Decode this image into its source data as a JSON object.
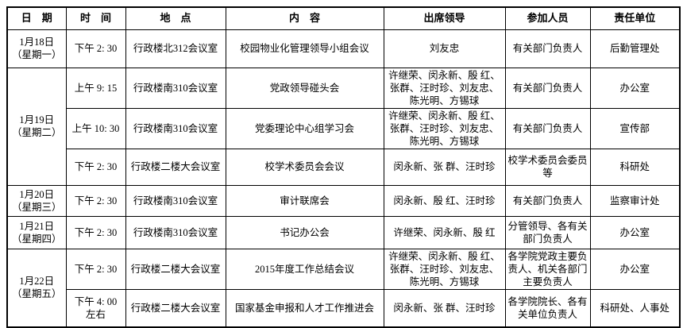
{
  "colors": {
    "border": "#000000",
    "background": "#ffffff",
    "text": "#000000"
  },
  "headers": {
    "date": "日　期",
    "time": "时　间",
    "place": "地　点",
    "content": "内　容",
    "leaders": "出席领导",
    "participants": "参加人员",
    "unit": "责任单位"
  },
  "rows": [
    {
      "date": "1月18日\n（星期一）",
      "time": "下午 2: 30",
      "place": "行政楼北312会议室",
      "content": "校园物业化管理领导小组会议",
      "leaders": "刘友忠",
      "participants": "有关部门负责人",
      "unit": "后勤管理处"
    },
    {
      "date": "1月19日\n（星期二）",
      "time": "上午 9: 15",
      "place": "行政楼南310会议室",
      "content": "党政领导碰头会",
      "leaders": "许继荣、闵永新、殷 红、张群、汪时珍、刘友忠、陈光明、方锡球",
      "participants": "有关部门负责人",
      "unit": "办公室"
    },
    {
      "time": "上午 10: 30",
      "place": "行政楼南310会议室",
      "content": "党委理论中心组学习会",
      "leaders": "许继荣、闵永新、殷 红、张群、汪时珍、刘友忠、陈光明、方锡球",
      "participants": "有关部门负责人",
      "unit": "宣传部"
    },
    {
      "time": "下午 2: 30",
      "place": "行政楼二楼大会议室",
      "content": "校学术委员会会议",
      "leaders": "闵永新、张 群、汪时珍",
      "participants": "校学术委员会委员等",
      "unit": "科研处"
    },
    {
      "date": "1月20日\n（星期三）",
      "time": "下午 2: 30",
      "place": "行政楼南310会议室",
      "content": "审计联席会",
      "leaders": "闵永新、殷 红、汪时珍",
      "participants": "有关部门负责人",
      "unit": "监察审计处"
    },
    {
      "date": "1月21日\n（星期四）",
      "time": "下午 2: 30",
      "place": "行政楼南310会议室",
      "content": "书记办公会",
      "leaders": "许继荣、闵永新、殷 红",
      "participants": "分管领导、各有关部门负责人",
      "unit": "办公室"
    },
    {
      "date": "1月22日\n（星期五）",
      "time": "下午 2: 30",
      "place": "行政楼二楼大会议室",
      "content": "2015年度工作总结会议",
      "leaders": "许继荣、闵永新、殷 红、张群、汪时珍、刘友忠、陈光明、方锡球",
      "participants": "各学院党政主要负责人、机关各部门主要负责人",
      "unit": "办公室"
    },
    {
      "time": "下午 4: 00\n左右",
      "place": "行政楼二楼大会议室",
      "content": "国家基金申报和人才工作推进会",
      "leaders": "闵永新、张 群、汪时珍",
      "participants": "各学院院长、各有关单位负责人",
      "unit": "科研处、人事处"
    }
  ]
}
